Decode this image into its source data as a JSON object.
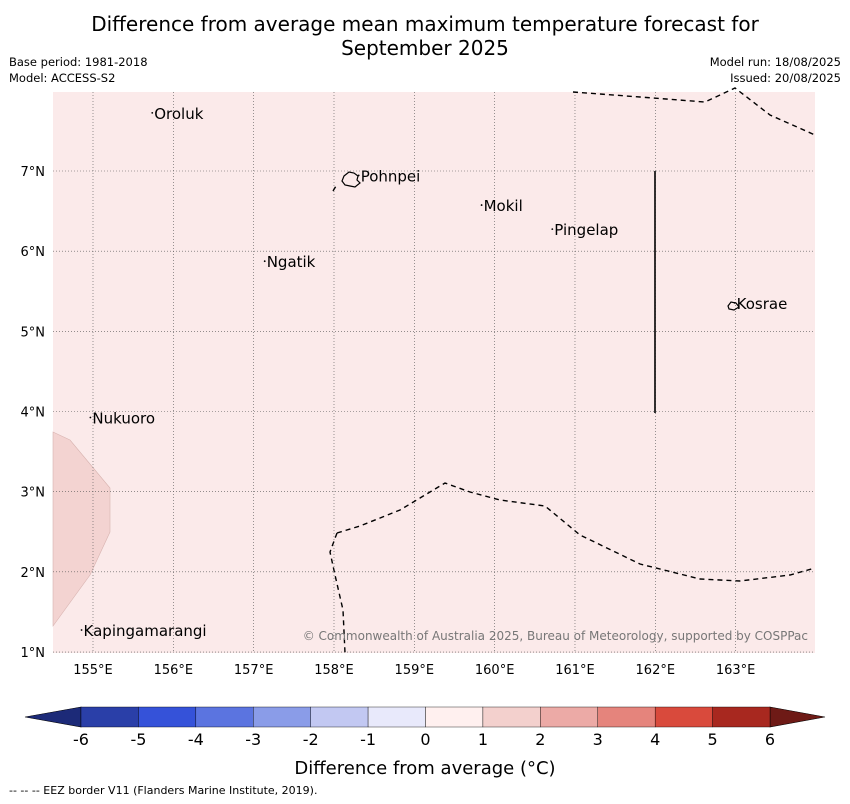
{
  "title_line1": "Difference from average mean maximum temperature forecast for",
  "title_line2": "September 2025",
  "base_period": "Base period: 1981-2018",
  "model": "Model: ACCESS-S2",
  "model_run": "Model run: 18/08/2025",
  "issued": "Issued: 20/08/2025",
  "copyright": "© Commonwealth of Australia 2025, Bureau of Meteorology, supported by COSPPac",
  "lat_labels": [
    "7°N",
    "6°N",
    "5°N",
    "4°N",
    "3°N",
    "2°N",
    "1°N"
  ],
  "lon_labels": [
    "155°E",
    "156°E",
    "157°E",
    "158°E",
    "159°E",
    "160°E",
    "161°E",
    "162°E",
    "163°E"
  ],
  "places": [
    {
      "name": "Oroluk",
      "lon": 155.75,
      "lat": 7.65
    },
    {
      "name": "Pohnpei",
      "lon": 158.32,
      "lat": 6.87
    },
    {
      "name": "Mokil",
      "lon": 159.85,
      "lat": 6.5
    },
    {
      "name": "Pingelap",
      "lon": 160.73,
      "lat": 6.2
    },
    {
      "name": "Ngatik",
      "lon": 157.15,
      "lat": 5.8
    },
    {
      "name": "Kosrae",
      "lon": 163.0,
      "lat": 5.28
    },
    {
      "name": "Nukuoro",
      "lon": 154.98,
      "lat": 3.85
    },
    {
      "name": "Kapingamarangi",
      "lon": 154.87,
      "lat": 1.2
    }
  ],
  "colorbar": {
    "ticks": [
      "-6",
      "-5",
      "-4",
      "-3",
      "-2",
      "-1",
      "0",
      "1",
      "2",
      "3",
      "4",
      "5",
      "6"
    ],
    "colors": [
      "#2a3fa8",
      "#3552d9",
      "#5b74e0",
      "#8a9ce8",
      "#c2c8f2",
      "#e8e9fb",
      "#fff0ef",
      "#f3d0cd",
      "#ecaaa6",
      "#e5847c",
      "#d94a3c",
      "#a8281f"
    ],
    "low_extend": "#1c2a78",
    "high_extend": "#6e1a16",
    "label": "Difference from average (°C)"
  },
  "map": {
    "background_color": "#fbeaea",
    "shaded_color": "#f3d3d1"
  },
  "footer": "--  --  -- EEZ border V11 (Flanders Marine Institute, 2019)."
}
